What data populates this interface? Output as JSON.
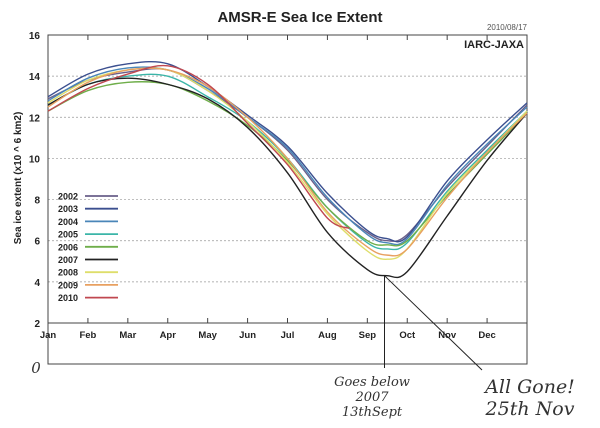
{
  "chart_data": {
    "type": "line",
    "title": "AMSR-E Sea Ice Extent",
    "date_stamp": "2010/08/17",
    "source": "IARC-JAXA",
    "ylabel": "Sea ice extent (x10 ^ 6 km2)",
    "xlabel": "",
    "ylim": [
      2,
      16
    ],
    "yticks": [
      2,
      4,
      6,
      8,
      10,
      12,
      14,
      16
    ],
    "xlim": [
      0,
      12
    ],
    "x_unit": "months since Jan 1",
    "months": [
      "Jan",
      "Feb",
      "Mar",
      "Apr",
      "May",
      "Jun",
      "Jul",
      "Aug",
      "Sep",
      "Oct",
      "Nov",
      "Dec"
    ],
    "grid": "horizontal dashed",
    "legend_position": "left-middle",
    "series": [
      {
        "name": "2002",
        "color": "#6a5f8a",
        "x": [
          0,
          1,
          2,
          3,
          4,
          5,
          6,
          7,
          8,
          8.5,
          9,
          10,
          11,
          12
        ],
        "values": [
          12.9,
          13.8,
          14.2,
          14.3,
          13.3,
          12.0,
          10.4,
          8.0,
          6.4,
          6.0,
          6.3,
          8.6,
          10.6,
          12.6
        ]
      },
      {
        "name": "2003",
        "color": "#3b4f8f",
        "x": [
          0,
          1,
          2,
          3,
          4,
          5,
          6,
          7,
          8,
          8.5,
          9,
          10,
          11,
          12
        ],
        "values": [
          13.0,
          14.1,
          14.6,
          14.6,
          13.5,
          12.1,
          10.6,
          8.3,
          6.5,
          6.1,
          6.2,
          8.9,
          10.9,
          12.7
        ]
      },
      {
        "name": "2004",
        "color": "#4a86b8",
        "x": [
          0,
          1,
          2,
          3,
          4,
          5,
          6,
          7,
          8,
          8.5,
          9,
          10,
          11,
          12
        ],
        "values": [
          12.8,
          13.9,
          14.4,
          14.3,
          13.4,
          12.0,
          10.5,
          8.1,
          6.3,
          5.9,
          6.1,
          8.7,
          10.7,
          12.5
        ]
      },
      {
        "name": "2005",
        "color": "#3bb5a8",
        "x": [
          0,
          1,
          2,
          3,
          4,
          5,
          6,
          7,
          8,
          8.5,
          9,
          10,
          11,
          12
        ],
        "values": [
          12.6,
          13.6,
          14.0,
          14.0,
          13.0,
          11.8,
          10.0,
          7.6,
          5.9,
          5.6,
          5.9,
          8.4,
          10.4,
          12.3
        ]
      },
      {
        "name": "2006",
        "color": "#6fae4a",
        "x": [
          0,
          1,
          2,
          3,
          4,
          5,
          6,
          7,
          8,
          8.5,
          9,
          10,
          11,
          12
        ],
        "values": [
          12.3,
          13.3,
          13.7,
          13.6,
          12.8,
          11.6,
          9.9,
          7.6,
          6.0,
          5.8,
          6.0,
          8.2,
          10.2,
          12.2
        ]
      },
      {
        "name": "2007",
        "color": "#222222",
        "x": [
          0,
          1,
          2,
          3,
          4,
          5,
          6,
          7,
          8,
          8.5,
          9,
          10,
          11,
          12
        ],
        "values": [
          12.6,
          13.6,
          13.9,
          13.6,
          12.9,
          11.5,
          9.3,
          6.4,
          4.6,
          4.3,
          4.5,
          7.2,
          9.9,
          12.2
        ]
      },
      {
        "name": "2008",
        "color": "#dede6a",
        "x": [
          0,
          1,
          2,
          3,
          4,
          5,
          6,
          7,
          8,
          8.5,
          9,
          10,
          11,
          12
        ],
        "values": [
          12.7,
          13.8,
          14.3,
          14.3,
          13.3,
          11.8,
          9.8,
          7.3,
          5.5,
          5.1,
          5.6,
          8.3,
          10.3,
          12.3
        ]
      },
      {
        "name": "2009",
        "color": "#e8a060",
        "x": [
          0,
          1,
          2,
          3,
          4,
          5,
          6,
          7,
          8,
          8.5,
          9,
          10,
          11,
          12
        ],
        "values": [
          12.5,
          13.7,
          14.3,
          14.3,
          13.5,
          12.0,
          10.0,
          7.4,
          5.7,
          5.3,
          5.6,
          8.1,
          10.3,
          12.2
        ]
      },
      {
        "name": "2010",
        "color": "#c04850",
        "x": [
          0,
          1,
          2,
          3,
          4,
          5,
          6,
          7,
          7.55
        ],
        "values": [
          12.3,
          13.4,
          14.1,
          14.5,
          13.6,
          11.7,
          9.7,
          7.1,
          6.6
        ]
      }
    ],
    "annotations": [
      {
        "text_lines": [
          "Goes below",
          "2007",
          "13thSept"
        ],
        "x": 8.43,
        "y": 4.3
      },
      {
        "text_lines": [
          "All Gone!",
          "25th Nov"
        ],
        "x": 10.8,
        "y": 0
      },
      {
        "text": "0",
        "note": "handwritten zero at lower axis"
      }
    ]
  }
}
